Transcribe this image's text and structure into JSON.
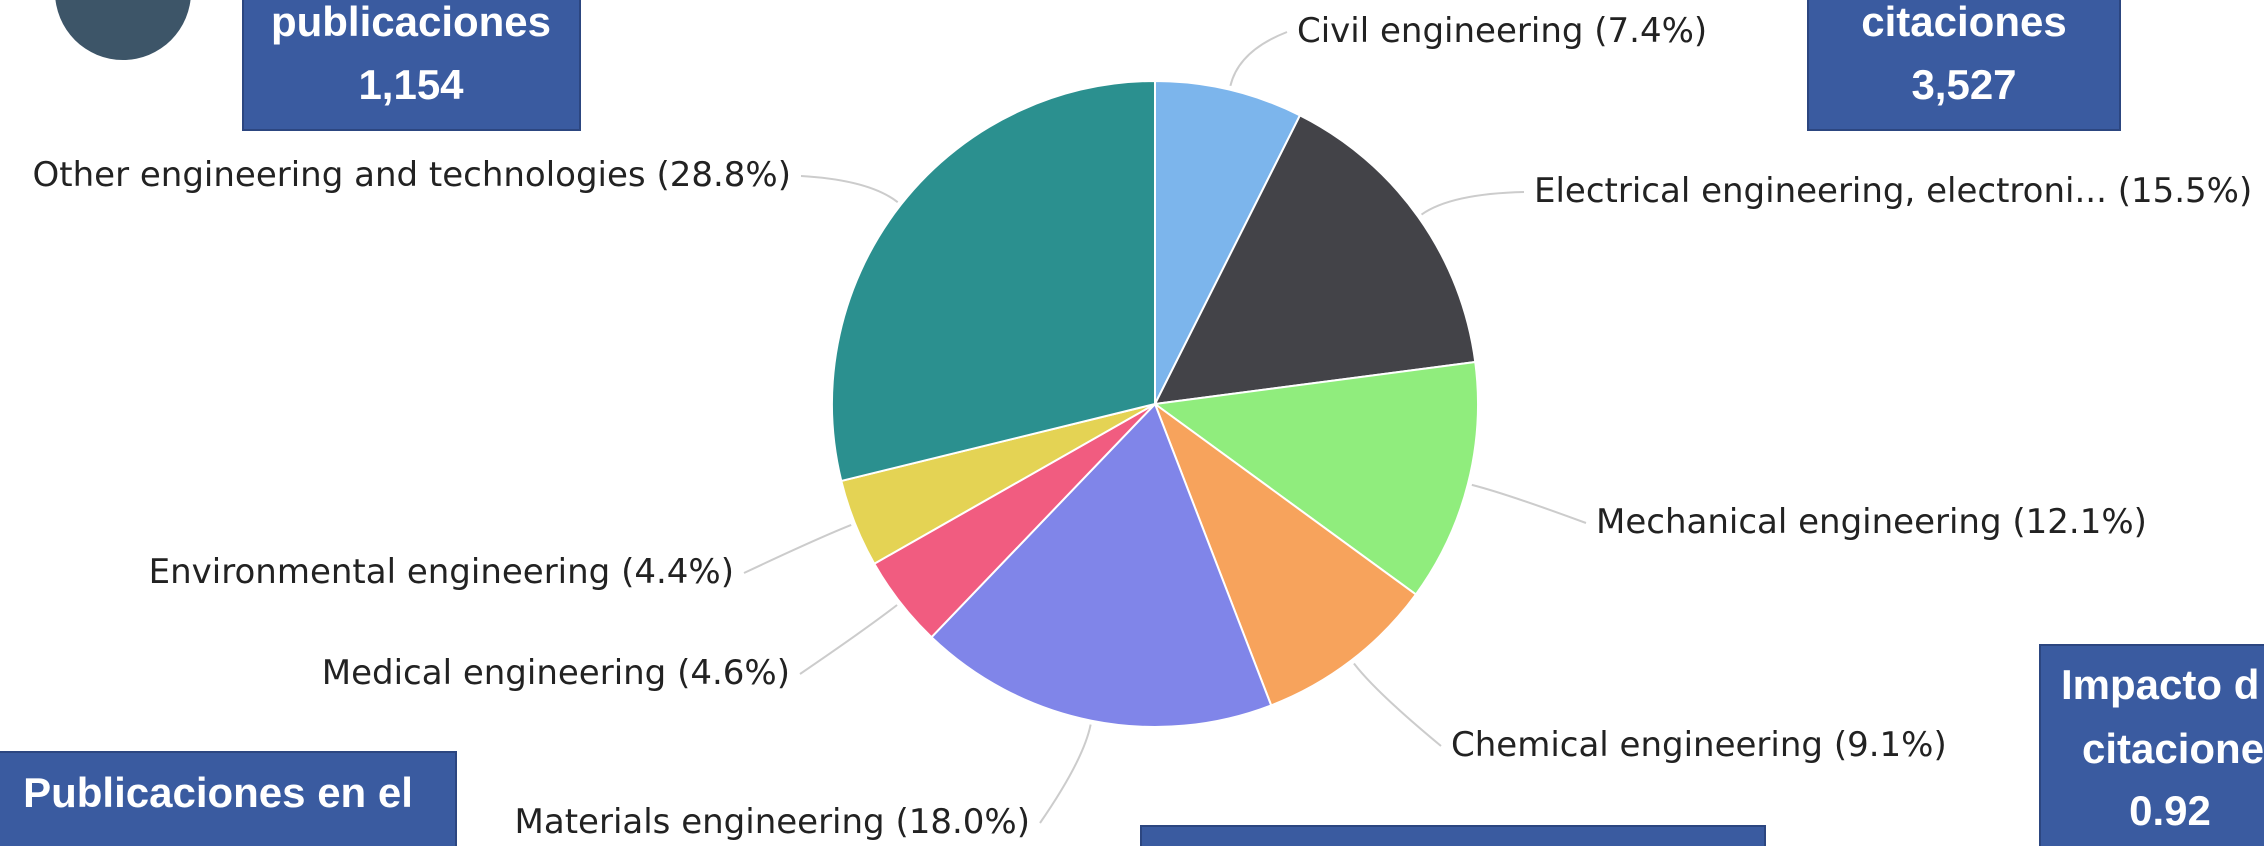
{
  "chart_data": {
    "type": "pie",
    "categories": [
      "Civil engineering",
      "Electrical engineering, electroni...",
      "Mechanical engineering",
      "Chemical engineering",
      "Materials engineering",
      "Medical engineering",
      "Environmental engineering",
      "Other engineering and technologies"
    ],
    "values": [
      7.4,
      15.5,
      12.1,
      9.1,
      18.0,
      4.6,
      4.4,
      28.8
    ],
    "value_labels": [
      "(7.4%)",
      "(15.5%)",
      "(12.1%)",
      "(9.1%)",
      "(18.0%)",
      "(4.6%)",
      "(4.4%)",
      "(28.8%)"
    ],
    "colors": [
      "#7cb5ec",
      "#434348",
      "#90ed7d",
      "#f7a35c",
      "#8085e9",
      "#f15c80",
      "#e4d354",
      "#2b908f"
    ]
  },
  "boxes": [
    {
      "lines": [
        "publicaciones",
        "1,154"
      ]
    },
    {
      "lines": [
        "citaciones",
        "3,527"
      ]
    },
    {
      "lines": [
        "Impacto d",
        "citacione",
        "0.92"
      ]
    },
    {
      "lines": [
        "Publicaciones en el"
      ]
    }
  ]
}
